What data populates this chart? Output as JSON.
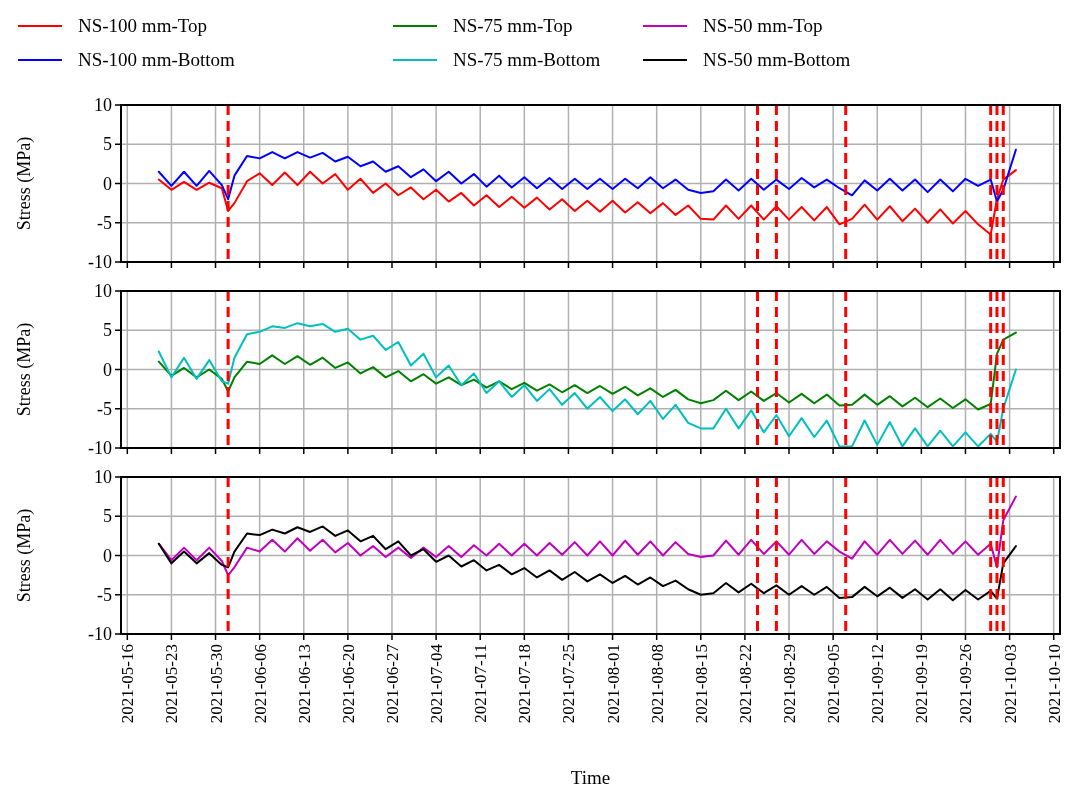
{
  "chart_data": [
    {
      "type": "line",
      "ylabel": "Stress (MPa)",
      "legend": "top",
      "grid": true,
      "tick_labels": "y",
      "line_style": "solid",
      "marker": "none",
      "xlim": [
        "2021-05-15",
        "2021-10-11"
      ],
      "xticks": [
        "2021-05-16",
        "2021-05-23",
        "2021-05-30",
        "2021-06-06",
        "2021-06-13",
        "2021-06-20",
        "2021-06-27",
        "2021-07-04",
        "2021-07-11",
        "2021-07-18",
        "2021-07-25",
        "2021-08-01",
        "2021-08-08",
        "2021-08-15",
        "2021-08-22",
        "2021-08-29",
        "2021-09-05",
        "2021-09-12",
        "2021-09-19",
        "2021-09-26",
        "2021-10-03",
        "2021-10-10"
      ],
      "ylim": [
        -10,
        10
      ],
      "yticks": [
        -10,
        -5,
        0,
        5,
        10
      ],
      "ref_lines": [
        {
          "axis": "x",
          "value": "2021-06-01",
          "color": "#ff0000",
          "line_style": "dashed"
        },
        {
          "axis": "x",
          "value": "2021-08-24",
          "color": "#ff0000",
          "line_style": "dashed"
        },
        {
          "axis": "x",
          "value": "2021-08-27",
          "color": "#ff0000",
          "line_style": "dashed"
        },
        {
          "axis": "x",
          "value": "2021-09-07",
          "color": "#ff0000",
          "line_style": "dashed"
        },
        {
          "axis": "x",
          "value": "2021-09-30",
          "color": "#ff0000",
          "line_style": "dashed"
        },
        {
          "axis": "x",
          "value": "2021-10-01",
          "color": "#ff0000",
          "line_style": "dashed"
        },
        {
          "axis": "x",
          "value": "2021-10-02",
          "color": "#ff0000",
          "line_style": "dashed"
        }
      ],
      "x": [
        "2021-05-21",
        "2021-05-23",
        "2021-05-25",
        "2021-05-27",
        "2021-05-29",
        "2021-05-31",
        "2021-06-01",
        "2021-06-02",
        "2021-06-04",
        "2021-06-06",
        "2021-06-08",
        "2021-06-10",
        "2021-06-12",
        "2021-06-14",
        "2021-06-16",
        "2021-06-18",
        "2021-06-20",
        "2021-06-22",
        "2021-06-24",
        "2021-06-26",
        "2021-06-28",
        "2021-06-30",
        "2021-07-02",
        "2021-07-04",
        "2021-07-06",
        "2021-07-08",
        "2021-07-10",
        "2021-07-12",
        "2021-07-14",
        "2021-07-16",
        "2021-07-18",
        "2021-07-20",
        "2021-07-22",
        "2021-07-24",
        "2021-07-26",
        "2021-07-28",
        "2021-07-30",
        "2021-08-01",
        "2021-08-03",
        "2021-08-05",
        "2021-08-07",
        "2021-08-09",
        "2021-08-11",
        "2021-08-13",
        "2021-08-15",
        "2021-08-17",
        "2021-08-19",
        "2021-08-21",
        "2021-08-23",
        "2021-08-25",
        "2021-08-27",
        "2021-08-29",
        "2021-08-31",
        "2021-09-02",
        "2021-09-04",
        "2021-09-06",
        "2021-09-08",
        "2021-09-10",
        "2021-09-12",
        "2021-09-14",
        "2021-09-16",
        "2021-09-18",
        "2021-09-20",
        "2021-09-22",
        "2021-09-24",
        "2021-09-26",
        "2021-09-28",
        "2021-09-30",
        "2021-10-01",
        "2021-10-02",
        "2021-10-04"
      ],
      "series": [
        {
          "name": "NS-100 mm-Top",
          "color": "#ff0000",
          "values": [
            0.5,
            -0.8,
            0.2,
            -0.8,
            0.1,
            -0.6,
            -3.5,
            -2.5,
            0.3,
            1.3,
            -0.2,
            1.4,
            -0.2,
            1.5,
            0,
            1.2,
            -0.8,
            0.6,
            -1.2,
            0,
            -1.5,
            -0.5,
            -2,
            -0.8,
            -2.3,
            -1.2,
            -2.8,
            -1.5,
            -3,
            -1.7,
            -3.1,
            -1.8,
            -3.3,
            -2,
            -3.5,
            -2.2,
            -3.6,
            -2.2,
            -3.7,
            -2.4,
            -3.8,
            -2.5,
            -4,
            -2.8,
            -4.5,
            -4.6,
            -2.8,
            -4.5,
            -2.8,
            -4.6,
            -2.9,
            -4.6,
            -3,
            -4.7,
            -3,
            -5.2,
            -4.5,
            -2.7,
            -4.6,
            -2.9,
            -4.8,
            -3.2,
            -5,
            -3.3,
            -5.1,
            -3.5,
            -5.2,
            -6.5,
            -2,
            0.5,
            1.7
          ]
        },
        {
          "name": "NS-100 mm-Bottom",
          "color": "#0000ff",
          "values": [
            1.5,
            -0.3,
            1.5,
            -0.3,
            1.6,
            -0.2,
            -2,
            1,
            3.5,
            3.2,
            4,
            3.2,
            4,
            3.3,
            3.9,
            2.8,
            3.4,
            2.2,
            2.8,
            1.5,
            2.2,
            0.8,
            1.8,
            0.3,
            1.5,
            0,
            1.2,
            -0.4,
            1,
            -0.5,
            0.8,
            -0.6,
            0.7,
            -0.7,
            0.6,
            -0.7,
            0.6,
            -0.7,
            0.6,
            -0.6,
            0.8,
            -0.6,
            0.5,
            -0.8,
            -1.2,
            -1,
            0.5,
            -0.9,
            0.6,
            -0.8,
            0.5,
            -0.7,
            0.7,
            -0.5,
            0.5,
            -0.6,
            -1.5,
            0.4,
            -0.9,
            0.6,
            -0.9,
            0.5,
            -1.1,
            0.5,
            -1,
            0.6,
            -0.3,
            0.5,
            -2.3,
            -0.8,
            4.3
          ]
        }
      ]
    },
    {
      "type": "line",
      "ylabel": "Stress (MPa)",
      "legend": "top",
      "grid": true,
      "tick_labels": "y",
      "line_style": "solid",
      "marker": "none",
      "xlim": [
        "2021-05-15",
        "2021-10-11"
      ],
      "xticks": [
        "2021-05-16",
        "2021-05-23",
        "2021-05-30",
        "2021-06-06",
        "2021-06-13",
        "2021-06-20",
        "2021-06-27",
        "2021-07-04",
        "2021-07-11",
        "2021-07-18",
        "2021-07-25",
        "2021-08-01",
        "2021-08-08",
        "2021-08-15",
        "2021-08-22",
        "2021-08-29",
        "2021-09-05",
        "2021-09-12",
        "2021-09-19",
        "2021-09-26",
        "2021-10-03",
        "2021-10-10"
      ],
      "ylim": [
        -10,
        10
      ],
      "yticks": [
        -10,
        -5,
        0,
        5,
        10
      ],
      "ref_lines": [
        {
          "axis": "x",
          "value": "2021-06-01",
          "color": "#ff0000",
          "line_style": "dashed"
        },
        {
          "axis": "x",
          "value": "2021-08-24",
          "color": "#ff0000",
          "line_style": "dashed"
        },
        {
          "axis": "x",
          "value": "2021-08-27",
          "color": "#ff0000",
          "line_style": "dashed"
        },
        {
          "axis": "x",
          "value": "2021-09-07",
          "color": "#ff0000",
          "line_style": "dashed"
        },
        {
          "axis": "x",
          "value": "2021-09-30",
          "color": "#ff0000",
          "line_style": "dashed"
        },
        {
          "axis": "x",
          "value": "2021-10-01",
          "color": "#ff0000",
          "line_style": "dashed"
        },
        {
          "axis": "x",
          "value": "2021-10-02",
          "color": "#ff0000",
          "line_style": "dashed"
        }
      ],
      "x": [
        "2021-05-21",
        "2021-05-23",
        "2021-05-25",
        "2021-05-27",
        "2021-05-29",
        "2021-05-31",
        "2021-06-01",
        "2021-06-02",
        "2021-06-04",
        "2021-06-06",
        "2021-06-08",
        "2021-06-10",
        "2021-06-12",
        "2021-06-14",
        "2021-06-16",
        "2021-06-18",
        "2021-06-20",
        "2021-06-22",
        "2021-06-24",
        "2021-06-26",
        "2021-06-28",
        "2021-06-30",
        "2021-07-02",
        "2021-07-04",
        "2021-07-06",
        "2021-07-08",
        "2021-07-10",
        "2021-07-12",
        "2021-07-14",
        "2021-07-16",
        "2021-07-18",
        "2021-07-20",
        "2021-07-22",
        "2021-07-24",
        "2021-07-26",
        "2021-07-28",
        "2021-07-30",
        "2021-08-01",
        "2021-08-03",
        "2021-08-05",
        "2021-08-07",
        "2021-08-09",
        "2021-08-11",
        "2021-08-13",
        "2021-08-15",
        "2021-08-17",
        "2021-08-19",
        "2021-08-21",
        "2021-08-23",
        "2021-08-25",
        "2021-08-27",
        "2021-08-29",
        "2021-08-31",
        "2021-09-02",
        "2021-09-04",
        "2021-09-06",
        "2021-09-08",
        "2021-09-10",
        "2021-09-12",
        "2021-09-14",
        "2021-09-16",
        "2021-09-18",
        "2021-09-20",
        "2021-09-22",
        "2021-09-24",
        "2021-09-26",
        "2021-09-28",
        "2021-09-30",
        "2021-10-01",
        "2021-10-02",
        "2021-10-04"
      ],
      "series": [
        {
          "name": "NS-75 mm-Top",
          "color": "#008000",
          "values": [
            1,
            -0.8,
            0.2,
            -1,
            0,
            -1.2,
            -2.8,
            -1,
            1,
            0.7,
            1.8,
            0.7,
            1.7,
            0.6,
            1.5,
            0.2,
            0.9,
            -0.5,
            0.3,
            -1,
            -0.2,
            -1.5,
            -0.6,
            -1.8,
            -1,
            -2,
            -1.3,
            -2.3,
            -1.5,
            -2.5,
            -1.7,
            -2.7,
            -1.9,
            -2.9,
            -2,
            -3,
            -2.1,
            -3.1,
            -2.2,
            -3.3,
            -2.4,
            -3.5,
            -2.6,
            -3.8,
            -4.3,
            -3.9,
            -2.7,
            -3.9,
            -2.8,
            -4,
            -3,
            -4.2,
            -3.1,
            -4.3,
            -3.2,
            -4.6,
            -4.5,
            -3.2,
            -4.5,
            -3.4,
            -4.7,
            -3.6,
            -4.8,
            -3.7,
            -4.9,
            -3.8,
            -5.1,
            -4.4,
            2,
            3.8,
            4.7
          ]
        },
        {
          "name": "NS-75 mm-Bottom",
          "color": "#00bfbf",
          "values": [
            2.3,
            -1,
            1.5,
            -1.2,
            1.2,
            -1.5,
            -1.8,
            1.5,
            4.5,
            4.8,
            5.5,
            5.3,
            5.9,
            5.5,
            5.8,
            4.8,
            5.2,
            3.8,
            4.3,
            2.5,
            3.5,
            0.5,
            2,
            -1,
            0.5,
            -2,
            -0.5,
            -3,
            -1.5,
            -3.5,
            -2,
            -4,
            -2.5,
            -4.5,
            -3,
            -5,
            -3.5,
            -5.3,
            -3.8,
            -5.7,
            -4,
            -6.3,
            -4.5,
            -6.8,
            -7.5,
            -7.5,
            -5,
            -7.5,
            -5.2,
            -8,
            -5.8,
            -8.5,
            -6.2,
            -8.6,
            -6.5,
            -9.8,
            -9.8,
            -6.5,
            -9.6,
            -6.7,
            -9.8,
            -7.5,
            -9.8,
            -7.8,
            -9.8,
            -8,
            -9.8,
            -8.2,
            -9.2,
            -5,
            0
          ]
        }
      ]
    },
    {
      "type": "line",
      "xlabel": "Time",
      "ylabel": "Stress (MPa)",
      "legend": "top",
      "grid": true,
      "line_style": "solid",
      "marker": "none",
      "xlim": [
        "2021-05-15",
        "2021-10-11"
      ],
      "xticks": [
        "2021-05-16",
        "2021-05-23",
        "2021-05-30",
        "2021-06-06",
        "2021-06-13",
        "2021-06-20",
        "2021-06-27",
        "2021-07-04",
        "2021-07-11",
        "2021-07-18",
        "2021-07-25",
        "2021-08-01",
        "2021-08-08",
        "2021-08-15",
        "2021-08-22",
        "2021-08-29",
        "2021-09-05",
        "2021-09-12",
        "2021-09-19",
        "2021-09-26",
        "2021-10-03",
        "2021-10-10"
      ],
      "ylim": [
        -10,
        10
      ],
      "yticks": [
        -10,
        -5,
        0,
        5,
        10
      ],
      "ref_lines": [
        {
          "axis": "x",
          "value": "2021-06-01",
          "color": "#ff0000",
          "line_style": "dashed"
        },
        {
          "axis": "x",
          "value": "2021-08-24",
          "color": "#ff0000",
          "line_style": "dashed"
        },
        {
          "axis": "x",
          "value": "2021-08-27",
          "color": "#ff0000",
          "line_style": "dashed"
        },
        {
          "axis": "x",
          "value": "2021-09-07",
          "color": "#ff0000",
          "line_style": "dashed"
        },
        {
          "axis": "x",
          "value": "2021-09-30",
          "color": "#ff0000",
          "line_style": "dashed"
        },
        {
          "axis": "x",
          "value": "2021-10-01",
          "color": "#ff0000",
          "line_style": "dashed"
        },
        {
          "axis": "x",
          "value": "2021-10-02",
          "color": "#ff0000",
          "line_style": "dashed"
        }
      ],
      "x": [
        "2021-05-21",
        "2021-05-23",
        "2021-05-25",
        "2021-05-27",
        "2021-05-29",
        "2021-05-31",
        "2021-06-01",
        "2021-06-02",
        "2021-06-04",
        "2021-06-06",
        "2021-06-08",
        "2021-06-10",
        "2021-06-12",
        "2021-06-14",
        "2021-06-16",
        "2021-06-18",
        "2021-06-20",
        "2021-06-22",
        "2021-06-24",
        "2021-06-26",
        "2021-06-28",
        "2021-06-30",
        "2021-07-02",
        "2021-07-04",
        "2021-07-06",
        "2021-07-08",
        "2021-07-10",
        "2021-07-12",
        "2021-07-14",
        "2021-07-16",
        "2021-07-18",
        "2021-07-20",
        "2021-07-22",
        "2021-07-24",
        "2021-07-26",
        "2021-07-28",
        "2021-07-30",
        "2021-08-01",
        "2021-08-03",
        "2021-08-05",
        "2021-08-07",
        "2021-08-09",
        "2021-08-11",
        "2021-08-13",
        "2021-08-15",
        "2021-08-17",
        "2021-08-19",
        "2021-08-21",
        "2021-08-23",
        "2021-08-25",
        "2021-08-27",
        "2021-08-29",
        "2021-08-31",
        "2021-09-02",
        "2021-09-04",
        "2021-09-06",
        "2021-09-08",
        "2021-09-10",
        "2021-09-12",
        "2021-09-14",
        "2021-09-16",
        "2021-09-18",
        "2021-09-20",
        "2021-09-22",
        "2021-09-24",
        "2021-09-26",
        "2021-09-28",
        "2021-09-30",
        "2021-10-01",
        "2021-10-02",
        "2021-10-04"
      ],
      "series": [
        {
          "name": "NS-50 mm-Top",
          "color": "#bf00bf",
          "values": [
            1.5,
            -0.6,
            1,
            -0.6,
            1,
            -0.7,
            -2.5,
            -1.5,
            1,
            0.5,
            2,
            0.5,
            2.2,
            0.6,
            2,
            0.4,
            1.6,
            0,
            1.2,
            -0.2,
            1,
            -0.3,
            1,
            -0.2,
            1.2,
            -0.2,
            1.3,
            0,
            1.5,
            0,
            1.5,
            0,
            1.6,
            0.1,
            1.7,
            0,
            1.8,
            0,
            1.9,
            0.1,
            1.8,
            0,
            1.7,
            0.2,
            -0.2,
            0,
            1.9,
            0.1,
            2,
            0.2,
            1.8,
            0.1,
            2,
            0.2,
            1.8,
            0.5,
            -0.4,
            1.8,
            0.1,
            2,
            0.2,
            1.9,
            0.1,
            2,
            0.2,
            1.8,
            0.1,
            1.5,
            -1.5,
            4.5,
            7.5
          ]
        },
        {
          "name": "NS-50 mm-Bottom",
          "color": "#000000",
          "values": [
            1.5,
            -1,
            0.5,
            -1,
            0.3,
            -1.2,
            -1.5,
            0.5,
            2.8,
            2.6,
            3.3,
            2.8,
            3.6,
            3,
            3.7,
            2.5,
            3.2,
            1.8,
            2.5,
            0.8,
            1.8,
            0,
            0.8,
            -0.8,
            0,
            -1.4,
            -0.6,
            -1.9,
            -1.2,
            -2.4,
            -1.6,
            -2.8,
            -1.9,
            -3.1,
            -2.1,
            -3.3,
            -2.4,
            -3.5,
            -2.6,
            -3.7,
            -2.8,
            -3.9,
            -3.2,
            -4.3,
            -5,
            -4.8,
            -3.5,
            -4.7,
            -3.6,
            -4.8,
            -3.8,
            -5,
            -3.9,
            -5,
            -4,
            -5.4,
            -5.3,
            -4,
            -5.2,
            -4.1,
            -5.4,
            -4.3,
            -5.6,
            -4.3,
            -5.7,
            -4.4,
            -5.6,
            -4.5,
            -5.5,
            -1,
            1.2
          ]
        }
      ]
    }
  ]
}
